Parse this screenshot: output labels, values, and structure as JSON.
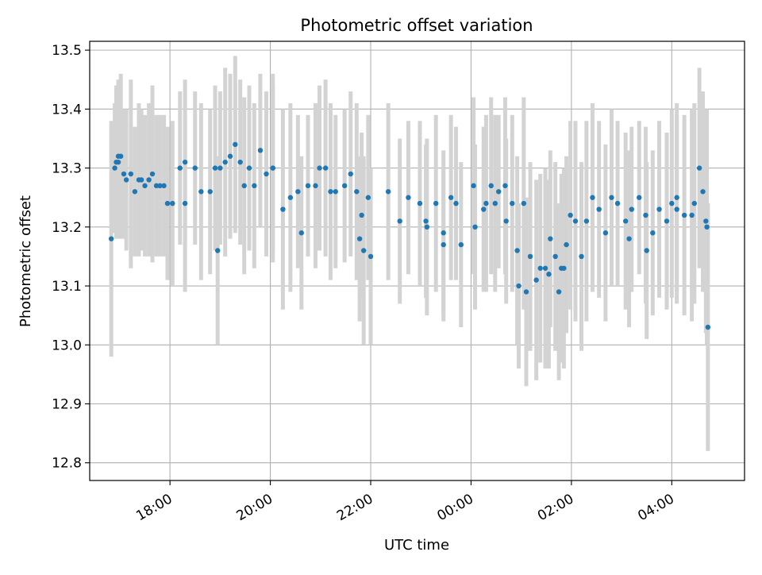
{
  "chart_data": {
    "type": "scatter",
    "title": "Photometric offset variation",
    "xlabel": "UTC time",
    "ylabel": "Photometric offset",
    "x_ticks": [
      "18:00",
      "20:00",
      "22:00",
      "00:00",
      "02:00",
      "04:00"
    ],
    "x_tick_hours": [
      18,
      20,
      22,
      24,
      26,
      28
    ],
    "y_ticks": [
      12.8,
      12.9,
      13.0,
      13.1,
      13.2,
      13.3,
      13.4,
      13.5
    ],
    "xlim_hours": [
      16.4,
      29.45
    ],
    "ylim": [
      12.77,
      13.515
    ],
    "grid": true,
    "colors": {
      "points": "#1f77b4",
      "error_bars": "#d3d3d3",
      "grid": "#b0b0b0"
    },
    "series": [
      {
        "x_hours": [
          16.83,
          16.9,
          16.93,
          16.97,
          17.02,
          17.08,
          17.13,
          17.22,
          17.3,
          17.38,
          17.43,
          17.5,
          17.58,
          17.65,
          17.73,
          17.8,
          17.88,
          17.95,
          18.05,
          18.2,
          18.3,
          18.5,
          18.62,
          18.8,
          18.9,
          19.0,
          19.1,
          19.2,
          19.3,
          19.4,
          19.48,
          19.58,
          19.68,
          19.8,
          19.92,
          20.05,
          20.25,
          20.4,
          20.55,
          20.62,
          20.75,
          20.9,
          20.98,
          21.1,
          21.2,
          21.3,
          21.48,
          21.6,
          21.72,
          21.82,
          21.95,
          22.35,
          22.58,
          22.75,
          22.98,
          23.1,
          23.3,
          23.45,
          23.6,
          23.7,
          23.8,
          24.05,
          24.25,
          24.4,
          24.55,
          24.68,
          24.82,
          24.92,
          25.05,
          25.18,
          25.3,
          25.38,
          25.48,
          25.58,
          25.68,
          25.8,
          25.9,
          25.98,
          26.08,
          26.2,
          26.3,
          26.42,
          26.55,
          26.68,
          26.8,
          26.92,
          27.08,
          27.2,
          27.35,
          27.48,
          27.62,
          27.75,
          27.9,
          28.0,
          28.1,
          28.25,
          28.4,
          28.55,
          28.62,
          28.68
        ],
        "y": [
          13.18,
          13.3,
          13.31,
          13.31,
          13.32,
          13.29,
          13.28,
          13.29,
          13.26,
          13.28,
          13.28,
          13.27,
          13.28,
          13.29,
          13.27,
          13.27,
          13.27,
          13.24,
          13.24,
          13.3,
          13.31,
          13.3,
          13.26,
          13.26,
          13.3,
          13.3,
          13.31,
          13.32,
          13.34,
          13.31,
          13.27,
          13.3,
          13.27,
          13.33,
          13.29,
          13.3,
          13.23,
          13.25,
          13.26,
          13.19,
          13.27,
          13.27,
          13.3,
          13.3,
          13.26,
          13.26,
          13.27,
          13.29,
          13.26,
          13.22,
          13.25,
          13.26,
          13.21,
          13.25,
          13.24,
          13.21,
          13.24,
          13.19,
          13.25,
          13.24,
          13.17,
          13.27,
          13.23,
          13.27,
          13.26,
          13.27,
          13.24,
          13.16,
          13.24,
          13.15,
          13.11,
          13.13,
          13.13,
          13.18,
          13.15,
          13.13,
          13.17,
          13.22,
          13.21,
          13.15,
          13.21,
          13.25,
          13.23,
          13.19,
          13.25,
          13.24,
          13.21,
          13.23,
          13.25,
          13.22,
          13.19,
          13.23,
          13.21,
          13.24,
          13.25,
          13.22,
          13.22,
          13.3,
          13.26,
          13.21
        ],
        "yerr": [
          0.2,
          0.11,
          0.13,
          0.13,
          0.14,
          0.11,
          0.12,
          0.16,
          0.11,
          0.13,
          0.12,
          0.12,
          0.13,
          0.15,
          0.12,
          0.12,
          0.12,
          0.13,
          0.14,
          0.13,
          0.14,
          0.13,
          0.15,
          0.14,
          0.14,
          0.13,
          0.16,
          0.14,
          0.15,
          0.14,
          0.15,
          0.14,
          0.14,
          0.13,
          0.14,
          0.16,
          0.17,
          0.16,
          0.13,
          0.13,
          0.12,
          0.14,
          0.14,
          0.15,
          0.15,
          0.13,
          0.13,
          0.14,
          0.15,
          0.14,
          0.14,
          0.15,
          0.14,
          0.13,
          0.14,
          0.13,
          0.15,
          0.14,
          0.14,
          0.13,
          0.14,
          0.15,
          0.14,
          0.15,
          0.13,
          0.15,
          0.15,
          0.16,
          0.18,
          0.16,
          0.17,
          0.16,
          0.17,
          0.15,
          0.16,
          0.16,
          0.15,
          0.16,
          0.17,
          0.16,
          0.17,
          0.16,
          0.15,
          0.15,
          0.15,
          0.14,
          0.15,
          0.14,
          0.13,
          0.15,
          0.14,
          0.15,
          0.15,
          0.16,
          0.16,
          0.17,
          0.18,
          0.17,
          0.17,
          0.19
        ]
      },
      {
        "x_hours": [
          16.97,
          18.3,
          18.95,
          20.05,
          21.78,
          21.86,
          22.0,
          23.12,
          23.45,
          24.08,
          24.3,
          24.48,
          24.7,
          24.95,
          25.1,
          25.55,
          25.75,
          25.85,
          27.15,
          27.5,
          28.1,
          28.45,
          28.7,
          28.72
        ],
        "y": [
          13.32,
          13.24,
          13.16,
          13.3,
          13.18,
          13.16,
          13.15,
          13.2,
          13.17,
          13.2,
          13.24,
          13.24,
          13.21,
          13.1,
          13.09,
          13.12,
          13.09,
          13.13,
          13.18,
          13.16,
          13.23,
          13.24,
          13.2,
          13.03
        ],
        "yerr": [
          0.13,
          0.15,
          0.16,
          0.14,
          0.14,
          0.16,
          0.15,
          0.15,
          0.13,
          0.14,
          0.15,
          0.15,
          0.14,
          0.14,
          0.16,
          0.16,
          0.15,
          0.17,
          0.15,
          0.15,
          0.16,
          0.17,
          0.2,
          0.21
        ]
      }
    ]
  }
}
